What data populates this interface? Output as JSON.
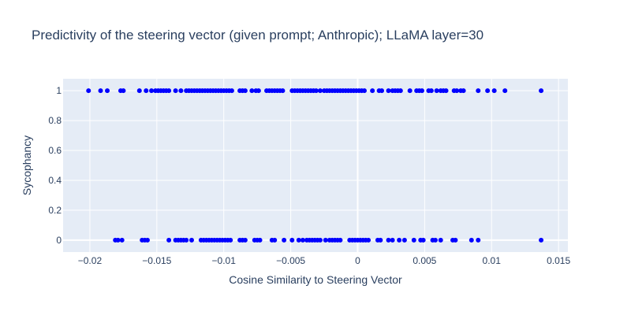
{
  "chart_data": {
    "type": "scatter",
    "title": "Predictivity of the steering vector (given prompt; Anthropic); LLaMA layer=30",
    "xlabel": "Cosine Similarity to Steering Vector",
    "ylabel": "Sycophancy",
    "xlim": [
      -0.022,
      0.0157
    ],
    "ylim": [
      -0.08,
      1.08
    ],
    "x_ticks": [
      -0.02,
      -0.015,
      -0.01,
      -0.005,
      0,
      0.005,
      0.01,
      0.015
    ],
    "x_tick_labels": [
      "−0.02",
      "−0.015",
      "−0.01",
      "−0.005",
      "0",
      "0.005",
      "0.01",
      "0.015"
    ],
    "y_ticks": [
      0,
      0.2,
      0.4,
      0.6,
      0.8,
      1
    ],
    "y_tick_labels": [
      "0",
      "0.2",
      "0.4",
      "0.6",
      "0.8",
      "1"
    ],
    "grid": true,
    "legend": "none",
    "colors": {
      "marker": "#0000ff",
      "plot_bg": "#e5ecf6",
      "grid": "#ffffff",
      "text": "#2a3f5f"
    },
    "series": [
      {
        "y": 1,
        "x": [
          -0.0201,
          -0.0192,
          -0.0187,
          -0.0177,
          -0.0175,
          -0.0163,
          -0.0158,
          -0.0154,
          -0.0151,
          -0.0149,
          -0.0147,
          -0.0145,
          -0.0143,
          -0.0141,
          -0.0136,
          -0.0132,
          -0.0128,
          -0.0126,
          -0.0124,
          -0.0122,
          -0.012,
          -0.0118,
          -0.0116,
          -0.0114,
          -0.0112,
          -0.011,
          -0.0108,
          -0.0106,
          -0.0104,
          -0.0102,
          -0.01,
          -0.0098,
          -0.0096,
          -0.0094,
          -0.0088,
          -0.0086,
          -0.0084,
          -0.0079,
          -0.0076,
          -0.0074,
          -0.0068,
          -0.0066,
          -0.0064,
          -0.0062,
          -0.006,
          -0.0058,
          -0.0056,
          -0.0049,
          -0.0047,
          -0.0045,
          -0.0043,
          -0.0041,
          -0.0039,
          -0.0037,
          -0.0035,
          -0.0033,
          -0.0031,
          -0.0028,
          -0.0025,
          -0.0023,
          -0.0021,
          -0.0019,
          -0.0017,
          -0.0015,
          -0.0013,
          -0.0011,
          -0.0009,
          -0.0007,
          -0.0005,
          -0.0003,
          -0.0001,
          0.0001,
          0.0003,
          0.0005,
          0.0011,
          0.0016,
          0.0018,
          0.0023,
          0.0026,
          0.0028,
          0.003,
          0.0032,
          0.0039,
          0.0044,
          0.0046,
          0.0048,
          0.0053,
          0.0055,
          0.0059,
          0.0062,
          0.0064,
          0.0066,
          0.0072,
          0.0074,
          0.0077,
          0.0079,
          0.009,
          0.0097,
          0.0102,
          0.011,
          0.0137
        ]
      },
      {
        "y": 0,
        "x": [
          -0.0181,
          -0.0179,
          -0.0176,
          -0.0161,
          -0.0159,
          -0.0157,
          -0.0141,
          -0.0136,
          -0.0134,
          -0.0132,
          -0.013,
          -0.0128,
          -0.0124,
          -0.0117,
          -0.0115,
          -0.0113,
          -0.0111,
          -0.0109,
          -0.0107,
          -0.0105,
          -0.0103,
          -0.0101,
          -0.0099,
          -0.0097,
          -0.0095,
          -0.0088,
          -0.0086,
          -0.0084,
          -0.0077,
          -0.0075,
          -0.0073,
          -0.0064,
          -0.0062,
          -0.0055,
          -0.0049,
          -0.0044,
          -0.0041,
          -0.0038,
          -0.0036,
          -0.0034,
          -0.0032,
          -0.003,
          -0.0028,
          -0.0024,
          -0.0021,
          -0.0019,
          -0.0017,
          -0.0015,
          -0.0013,
          -0.0006,
          -0.0004,
          -0.0002,
          0,
          0.0002,
          0.0004,
          0.0006,
          0.0008,
          0.0015,
          0.0017,
          0.0023,
          0.0026,
          0.0031,
          0.0035,
          0.0042,
          0.0047,
          0.0049,
          0.0056,
          0.0058,
          0.0062,
          0.0071,
          0.0073,
          0.0085,
          0.009,
          0.0137
        ]
      }
    ]
  }
}
